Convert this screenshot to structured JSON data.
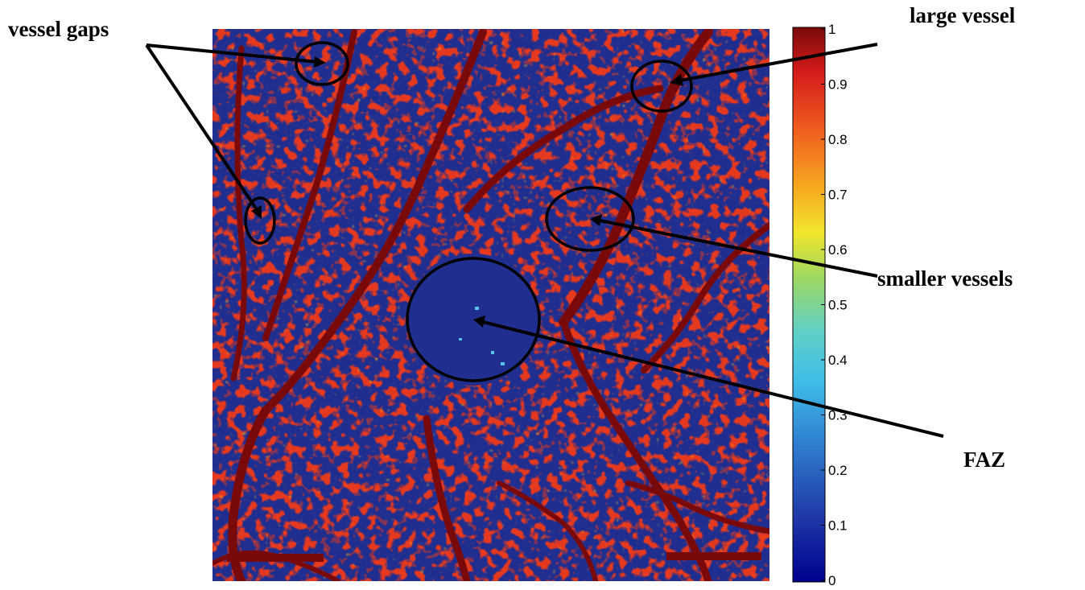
{
  "figure": {
    "colormap": "jet",
    "annotations": {
      "vessel_gaps": "vessel gaps",
      "large_vessel": "large vessel",
      "smaller_vessels": "smaller vessels",
      "faz": "FAZ"
    },
    "colorbar": {
      "min": 0,
      "max": 1,
      "ticks": [
        "0",
        "0.1",
        "0.2",
        "0.3",
        "0.4",
        "0.5",
        "0.6",
        "0.7",
        "0.8",
        "0.9",
        "1"
      ]
    },
    "colors": {
      "low": "#1f2e8f",
      "mid_low": "#57c3e6",
      "mid": "#f2e02b",
      "mid_high": "#f07020",
      "high": "#d8231c",
      "max": "#6b0d0d",
      "annotation": "#000000"
    }
  }
}
